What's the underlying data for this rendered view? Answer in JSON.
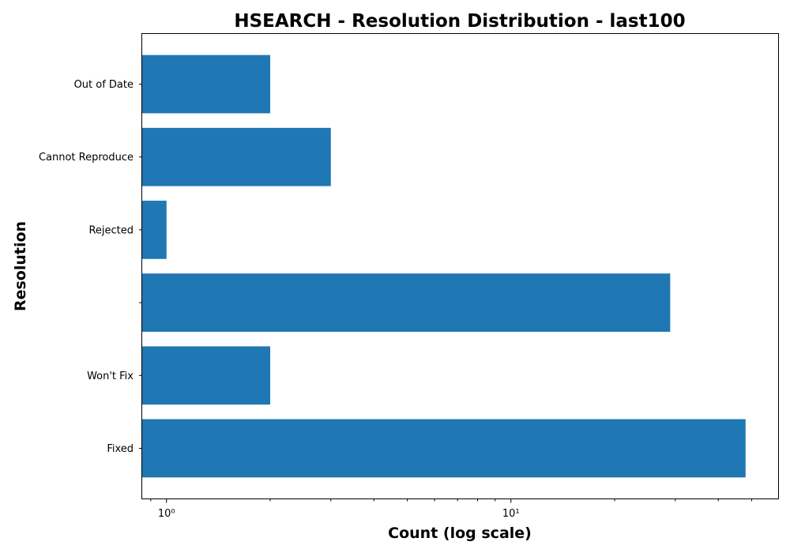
{
  "chart_data": {
    "type": "bar",
    "orientation": "horizontal",
    "title": "HSEARCH - Resolution Distribution - last100",
    "xlabel": "Count (log scale)",
    "ylabel": "Resolution",
    "xscale": "log",
    "xlim": [
      0.85,
      60
    ],
    "categories": [
      "Out of Date",
      "Cannot Reproduce",
      "Rejected",
      "",
      "Won't Fix",
      "Fixed"
    ],
    "values": [
      2,
      3,
      1,
      29,
      2,
      48
    ],
    "x_major_ticks": [
      1,
      10
    ],
    "x_major_tick_labels": [
      "10⁰",
      "10¹"
    ],
    "bar_color": "#1f77b4",
    "grid": false,
    "legend": "none"
  }
}
